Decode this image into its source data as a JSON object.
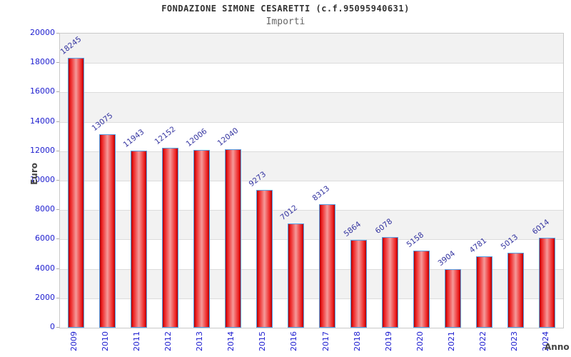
{
  "header": {
    "title": "FONDAZIONE SIMONE CESARETTI (c.f.95095940631)",
    "subtitle": "Importi"
  },
  "chart_data": {
    "type": "bar",
    "title": "FONDAZIONE SIMONE CESARETTI (c.f.95095940631)",
    "subtitle": "Importi",
    "xlabel": "Anno",
    "ylabel": "Euro",
    "categories": [
      "2009",
      "2010",
      "2011",
      "2012",
      "2013",
      "2014",
      "2015",
      "2016",
      "2017",
      "2018",
      "2019",
      "2020",
      "2021",
      "2022",
      "2023",
      "2024"
    ],
    "values": [
      18245,
      13075,
      11943,
      12152,
      12006,
      12040,
      9273,
      7012,
      8313,
      5864,
      6078,
      5158,
      3904,
      4781,
      5013,
      6014
    ],
    "ylim": [
      0,
      20000
    ],
    "yticks": [
      0,
      2000,
      4000,
      6000,
      8000,
      10000,
      12000,
      14000,
      16000,
      18000,
      20000
    ],
    "grid": "horizontal-bands",
    "legend": null,
    "colors": {
      "bar_edge": "#b30000",
      "bar_mid": "#ee2222",
      "bar_center": "#f59a9a",
      "bar_border": "#55a0e6",
      "value_label": "#3434a0",
      "tick_label": "#2020d0",
      "axis_label": "#444444",
      "band": "#f2f2f2",
      "gridline": "#dcdcdc",
      "plot_border": "#c9c9c9",
      "background": "#ffffff"
    }
  }
}
